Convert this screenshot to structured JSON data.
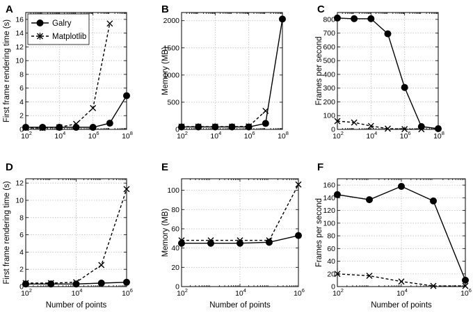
{
  "chart_data": [
    {
      "type": "line",
      "panel": "A",
      "xscale": "log",
      "xlim": [
        100,
        100000000
      ],
      "ylim": [
        0,
        17
      ],
      "xticks": [
        2,
        4,
        6,
        8
      ],
      "yticks": [
        0,
        2,
        4,
        6,
        8,
        10,
        12,
        14,
        16
      ],
      "xlabel": "",
      "ylabel": "First frame rendering time (s)",
      "legend": {
        "position": "top-left",
        "entries": [
          "Galry",
          "Matplotlib"
        ]
      },
      "series": [
        {
          "name": "Galry",
          "style": "solid-circle",
          "x": [
            100,
            1000,
            10000,
            100000,
            1000000,
            10000000,
            100000000
          ],
          "y": [
            0.3,
            0.3,
            0.3,
            0.3,
            0.3,
            0.9,
            4.9
          ]
        },
        {
          "name": "Matplotlib",
          "style": "dashed-x",
          "x": [
            100,
            1000,
            10000,
            100000,
            1000000,
            10000000
          ],
          "y": [
            0.2,
            0.2,
            0.3,
            0.8,
            3.1,
            15.4
          ]
        }
      ]
    },
    {
      "type": "line",
      "panel": "B",
      "xscale": "log",
      "xlim": [
        100,
        100000000
      ],
      "ylim": [
        0,
        2150
      ],
      "xticks": [
        2,
        4,
        6,
        8
      ],
      "yticks": [
        0,
        500,
        1000,
        1500,
        2000
      ],
      "xlabel": "",
      "ylabel": "Memory (MB)",
      "series": [
        {
          "name": "Galry",
          "style": "solid-circle",
          "x": [
            100,
            1000,
            10000,
            100000,
            1000000,
            10000000,
            100000000
          ],
          "y": [
            45,
            45,
            45,
            45,
            45,
            110,
            2030
          ]
        },
        {
          "name": "Matplotlib",
          "style": "dashed-x",
          "x": [
            100,
            1000,
            10000,
            100000,
            1000000,
            10000000
          ],
          "y": [
            50,
            50,
            50,
            50,
            55,
            340
          ]
        }
      ]
    },
    {
      "type": "line",
      "panel": "C",
      "xscale": "log",
      "xlim": [
        100,
        100000000
      ],
      "ylim": [
        0,
        850
      ],
      "xticks": [
        2,
        4,
        6,
        8
      ],
      "yticks": [
        0,
        100,
        200,
        300,
        400,
        500,
        600,
        700,
        800
      ],
      "xlabel": "",
      "ylabel": "Frames per second",
      "series": [
        {
          "name": "Galry",
          "style": "solid-circle",
          "x": [
            100,
            1000,
            10000,
            100000,
            1000000,
            10000000,
            100000000
          ],
          "y": [
            810,
            805,
            805,
            695,
            305,
            20,
            5
          ]
        },
        {
          "name": "Matplotlib",
          "style": "dashed-x",
          "x": [
            100,
            1000,
            10000,
            100000,
            1000000,
            10000000
          ],
          "y": [
            60,
            50,
            25,
            5,
            2,
            1
          ]
        }
      ]
    },
    {
      "type": "line",
      "panel": "D",
      "xscale": "log",
      "xlim": [
        100,
        1000000
      ],
      "ylim": [
        0,
        12.5
      ],
      "xticks": [
        2,
        4,
        6
      ],
      "yticks": [
        0,
        2,
        4,
        6,
        8,
        10,
        12
      ],
      "xlabel": "Number of points",
      "ylabel": "First frame rendering time (s)",
      "series": [
        {
          "name": "Galry",
          "style": "solid-circle",
          "x": [
            100,
            1000,
            10000,
            100000,
            1000000
          ],
          "y": [
            0.3,
            0.3,
            0.3,
            0.4,
            0.5
          ]
        },
        {
          "name": "Matplotlib",
          "style": "dashed-x",
          "x": [
            100,
            1000,
            10000,
            100000,
            1000000
          ],
          "y": [
            0.4,
            0.4,
            0.5,
            2.5,
            11.3
          ]
        }
      ]
    },
    {
      "type": "line",
      "panel": "E",
      "xscale": "log",
      "xlim": [
        100,
        1000000
      ],
      "ylim": [
        0,
        112
      ],
      "xticks": [
        2,
        4,
        6
      ],
      "yticks": [
        0,
        20,
        40,
        60,
        80,
        100
      ],
      "xlabel": "Number of points",
      "ylabel": "Memory (MB)",
      "series": [
        {
          "name": "Galry",
          "style": "solid-circle",
          "x": [
            100,
            1000,
            10000,
            100000,
            1000000
          ],
          "y": [
            45,
            45,
            45,
            46,
            53
          ]
        },
        {
          "name": "Matplotlib",
          "style": "dashed-x",
          "x": [
            100,
            1000,
            10000,
            100000,
            1000000
          ],
          "y": [
            48,
            48,
            48,
            48,
            106
          ]
        }
      ]
    },
    {
      "type": "line",
      "panel": "F",
      "xscale": "log",
      "xlim": [
        100,
        1000000
      ],
      "ylim": [
        0,
        170
      ],
      "xticks": [
        2,
        4,
        6
      ],
      "yticks": [
        0,
        20,
        40,
        60,
        80,
        100,
        120,
        140,
        160
      ],
      "xlabel": "Number of points",
      "ylabel": "Frames per second",
      "series": [
        {
          "name": "Galry",
          "style": "solid-circle",
          "x": [
            100,
            1000,
            10000,
            100000,
            1000000
          ],
          "y": [
            145,
            137,
            158,
            135,
            10
          ]
        },
        {
          "name": "Matplotlib",
          "style": "dashed-x",
          "x": [
            100,
            1000,
            10000,
            100000,
            1000000
          ],
          "y": [
            20,
            17,
            8,
            1,
            1
          ]
        }
      ]
    }
  ]
}
